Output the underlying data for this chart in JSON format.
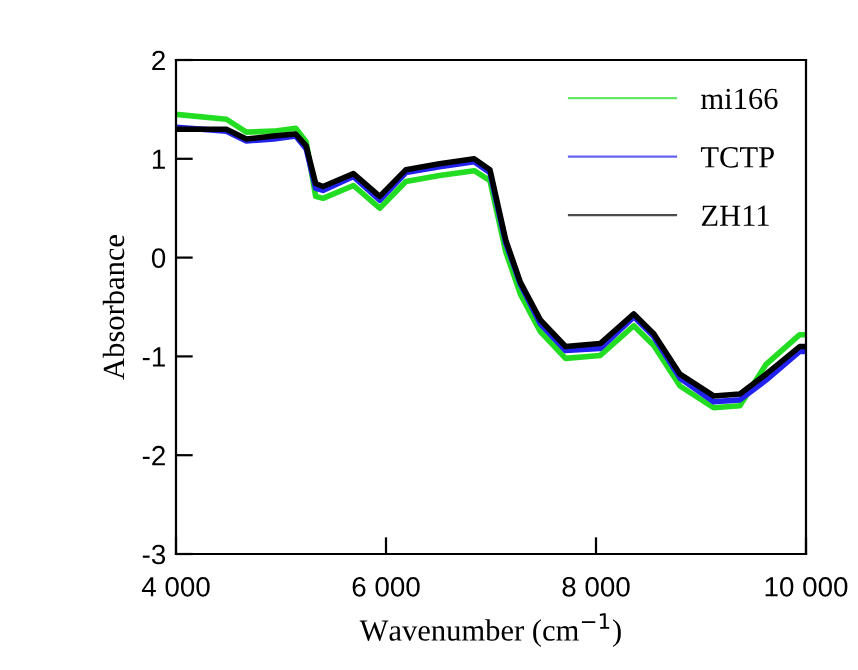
{
  "chart_data": {
    "type": "line",
    "xlabel": "Wavenumber (cm$^{−1}$)",
    "ylabel": "Absorbance",
    "x": [
      4000,
      4480,
      4670,
      4930,
      5140,
      5240,
      5330,
      5400,
      5690,
      5940,
      6190,
      6510,
      6840,
      6990,
      7140,
      7280,
      7470,
      7710,
      8040,
      8360,
      8550,
      8800,
      9120,
      9370,
      9620,
      9940,
      10000
    ],
    "series": [
      {
        "name": "mi166",
        "color": "#22dd22",
        "values": [
          1.45,
          1.4,
          1.27,
          1.28,
          1.31,
          1.17,
          0.62,
          0.6,
          0.73,
          0.5,
          0.77,
          0.83,
          0.88,
          0.78,
          0.06,
          -0.37,
          -0.75,
          -1.02,
          -0.99,
          -0.69,
          -0.89,
          -1.3,
          -1.52,
          -1.5,
          -1.08,
          -0.78,
          -0.78
        ]
      },
      {
        "name": "TCTP",
        "color": "#2222ee",
        "values": [
          1.32,
          1.28,
          1.18,
          1.2,
          1.23,
          1.1,
          0.7,
          0.68,
          0.82,
          0.58,
          0.86,
          0.92,
          0.97,
          0.86,
          0.15,
          -0.27,
          -0.67,
          -0.94,
          -0.92,
          -0.6,
          -0.8,
          -1.22,
          -1.46,
          -1.44,
          -1.24,
          -0.95,
          -0.95
        ]
      },
      {
        "name": "ZH11",
        "color": "#000000",
        "values": [
          1.3,
          1.3,
          1.2,
          1.23,
          1.25,
          1.13,
          0.75,
          0.72,
          0.85,
          0.62,
          0.89,
          0.95,
          1.0,
          0.89,
          0.18,
          -0.25,
          -0.63,
          -0.9,
          -0.87,
          -0.57,
          -0.77,
          -1.18,
          -1.4,
          -1.38,
          -1.18,
          -0.9,
          -0.9
        ]
      }
    ],
    "xlim": [
      4000,
      10000
    ],
    "xticks": [
      {
        "value": 4000,
        "label": "4 000"
      },
      {
        "value": 6000,
        "label": "6 000"
      },
      {
        "value": 8000,
        "label": "8 000"
      },
      {
        "value": 10000,
        "label": "10 000"
      }
    ],
    "ylim": [
      -3,
      2
    ],
    "yticks": [
      -3,
      -2,
      -1,
      0,
      1,
      2
    ],
    "legend": "top right",
    "grid": false,
    "marker": "none",
    "line_style": "solid"
  }
}
